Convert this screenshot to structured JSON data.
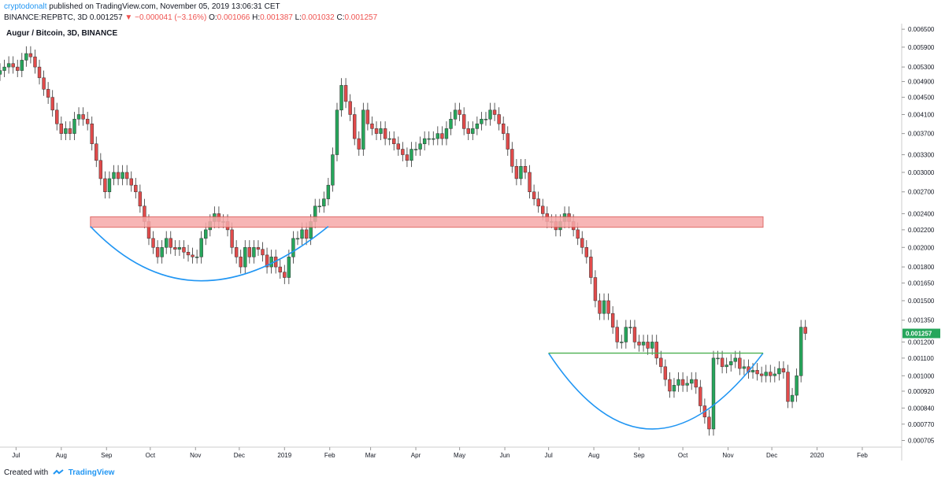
{
  "header": {
    "publisher": "cryptodonalt",
    "published_text": "published on TradingView.com, November 05, 2019 13:06:31 CET",
    "symbol": "BINANCE:REPBTC, 3D",
    "last": "0.001257",
    "change": "▼ −0.000041 (−3.16%)",
    "o_label": "O:",
    "o_value": "0.001066",
    "h_label": "H:",
    "h_value": "0.001387",
    "l_label": "L:",
    "l_value": "0.001032",
    "c_label": "C:",
    "c_value": "0.001257"
  },
  "title": "Augur / Bitcoin, 3D, BINANCE",
  "footer": {
    "created_with": "Created with",
    "brand": "TradingView"
  },
  "colors": {
    "up": "#26a65b",
    "down": "#e14b4b",
    "resistance_fill": "#f6a9a9",
    "resistance_border": "#d9534f",
    "cup": "#2196f3",
    "neckline": "#4caf50",
    "last_price_bg": "#26a65b"
  },
  "chart_data": {
    "type": "candlestick",
    "title": "Augur / Bitcoin, 3D, BINANCE",
    "y_scale": "log",
    "ylim": [
      0.00068,
      0.0067
    ],
    "y_ticks": [
      "0.006500",
      "0.005900",
      "0.005300",
      "0.004900",
      "0.004500",
      "0.004100",
      "0.003700",
      "0.003300",
      "0.003000",
      "0.002700",
      "0.002400",
      "0.002200",
      "0.002000",
      "0.001800",
      "0.001650",
      "0.001500",
      "0.001350",
      "0.001200",
      "0.001100",
      "0.001000",
      "0.000920",
      "0.000840",
      "0.000770",
      "0.000705"
    ],
    "x_ticks": [
      "Jul",
      "Aug",
      "Sep",
      "Oct",
      "Nov",
      "Dec",
      "2019",
      "Feb",
      "Mar",
      "Apr",
      "May",
      "Jun",
      "Jul",
      "Aug",
      "Sep",
      "Oct",
      "Nov",
      "Dec",
      "2020",
      "Feb"
    ],
    "x_range": [
      "2018-06-20",
      "2020-02-28"
    ],
    "last_price": "0.001257",
    "resistance_zone": {
      "from_date": "2018-08-21",
      "to_date": "2019-11-25",
      "low": 0.00223,
      "high": 0.00236
    },
    "cup_left": {
      "from_date": "2018-08-21",
      "to_date": "2019-01-31",
      "rim": 0.00224,
      "bottom": 0.00167,
      "bottom_date": "2018-11-08"
    },
    "cup_right": {
      "from_date": "2019-07-01",
      "to_date": "2019-11-25",
      "rim": 0.00113,
      "bottom": 0.00075,
      "bottom_date": "2019-09-15"
    },
    "neckline": {
      "from_date": "2019-07-01",
      "to_date": "2019-11-25",
      "value": 0.00113
    },
    "candles_segment_start": "2018-06-20",
    "candles_interval_days": 3,
    "closes": [
      0.0052,
      0.0053,
      0.0054,
      0.0053,
      0.0052,
      0.0055,
      0.0057,
      0.0056,
      0.0053,
      0.005,
      0.0047,
      0.0045,
      0.0042,
      0.0039,
      0.0037,
      0.0038,
      0.0037,
      0.004,
      0.0041,
      0.004,
      0.0039,
      0.0035,
      0.0032,
      0.0029,
      0.0027,
      0.0029,
      0.003,
      0.0029,
      0.003,
      0.0029,
      0.0028,
      0.0027,
      0.0025,
      0.0023,
      0.0021,
      0.002,
      0.0019,
      0.002,
      0.0021,
      0.002,
      0.00198,
      0.002,
      0.00195,
      0.00192,
      0.0019,
      0.0019,
      0.0021,
      0.0022,
      0.0023,
      0.0024,
      0.0023,
      0.0023,
      0.0022,
      0.002,
      0.0019,
      0.0018,
      0.002,
      0.0019,
      0.002,
      0.00198,
      0.00192,
      0.0018,
      0.0019,
      0.0018,
      0.00175,
      0.0017,
      0.0019,
      0.0021,
      0.0021,
      0.0022,
      0.0021,
      0.0023,
      0.0025,
      0.0025,
      0.0026,
      0.0028,
      0.0033,
      0.0042,
      0.0048,
      0.0044,
      0.0041,
      0.0036,
      0.0034,
      0.0042,
      0.0039,
      0.0038,
      0.0037,
      0.0038,
      0.0036,
      0.0036,
      0.0035,
      0.0034,
      0.0033,
      0.0032,
      0.0034,
      0.0034,
      0.0035,
      0.0036,
      0.0036,
      0.0036,
      0.0037,
      0.0036,
      0.0038,
      0.004,
      0.0042,
      0.0041,
      0.0038,
      0.0037,
      0.0038,
      0.0039,
      0.004,
      0.004,
      0.0042,
      0.0041,
      0.0039,
      0.0037,
      0.0034,
      0.0031,
      0.0029,
      0.0031,
      0.003,
      0.0027,
      0.0026,
      0.0025,
      0.0024,
      0.0023,
      0.0023,
      0.0022,
      0.0023,
      0.0024,
      0.0023,
      0.0022,
      0.0021,
      0.002,
      0.0019,
      0.0017,
      0.0015,
      0.0014,
      0.0015,
      0.0014,
      0.0013,
      0.0012,
      0.0012,
      0.0013,
      0.0013,
      0.0012,
      0.00118,
      0.0012,
      0.00116,
      0.0012,
      0.0011,
      0.00105,
      0.00098,
      0.00092,
      0.00095,
      0.00098,
      0.00095,
      0.00096,
      0.00098,
      0.00094,
      0.00085,
      0.0008,
      0.00075,
      0.0011,
      0.0011,
      0.00105,
      0.00106,
      0.00108,
      0.0011,
      0.00104,
      0.00105,
      0.00102,
      0.00103,
      0.00101,
      0.001,
      0.00102,
      0.001,
      0.00101,
      0.00104,
      0.00102,
      0.00087,
      0.0009,
      0.001,
      0.0013,
      0.001257
    ]
  }
}
